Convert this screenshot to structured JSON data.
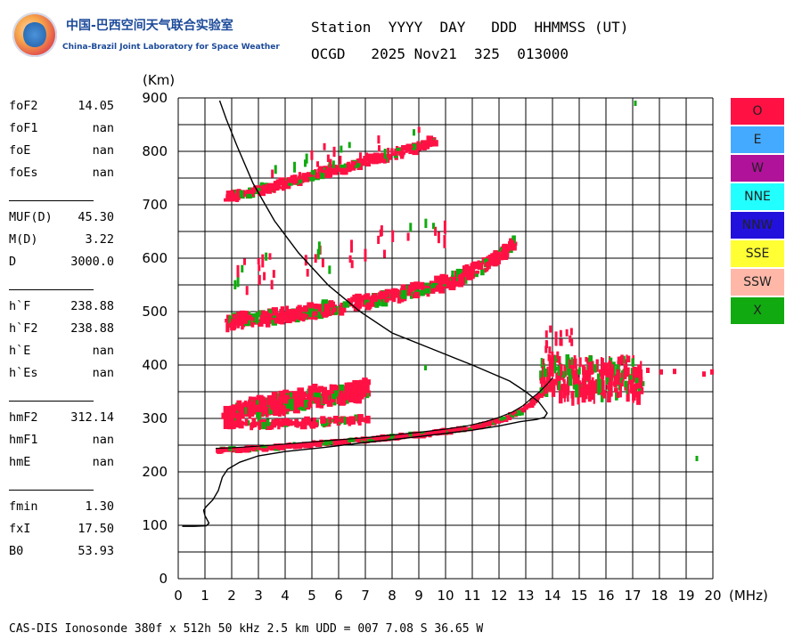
{
  "logo": {
    "cn": "中国-巴西空间天气联合实验室",
    "en": "China-Brazil Joint Laboratory for Space Weather"
  },
  "header": {
    "line1": "Station  YYYY  DAY   DDD  HHMMSS (UT)",
    "line2": "OCGD   2025 Nov21  325  013000"
  },
  "params": [
    {
      "label": "foF2",
      "value": "14.05"
    },
    {
      "label": "foF1",
      "value": "nan"
    },
    {
      "label": "foE",
      "value": "nan"
    },
    {
      "label": "foEs",
      "value": "nan"
    },
    {
      "divider": true
    },
    {
      "label": "MUF(D)",
      "value": "45.30"
    },
    {
      "label": "M(D)",
      "value": "3.22"
    },
    {
      "label": "D",
      "value": "3000.0"
    },
    {
      "divider": true
    },
    {
      "label": "h`F",
      "value": "238.88"
    },
    {
      "label": "h`F2",
      "value": "238.88"
    },
    {
      "label": "h`E",
      "value": "nan"
    },
    {
      "label": "h`Es",
      "value": "nan"
    },
    {
      "divider": true
    },
    {
      "label": "hmF2",
      "value": "312.14"
    },
    {
      "label": "hmF1",
      "value": "nan"
    },
    {
      "label": "hmE",
      "value": "nan"
    },
    {
      "divider": true
    },
    {
      "label": "fmin",
      "value": "1.30"
    },
    {
      "label": "fxI",
      "value": "17.50"
    },
    {
      "label": "B0",
      "value": "53.93"
    }
  ],
  "legend": [
    {
      "label": "O",
      "color": "#ff1144"
    },
    {
      "label": "E",
      "color": "#44aaff"
    },
    {
      "label": "W",
      "color": "#b0129a"
    },
    {
      "label": "NNE",
      "color": "#22ffff"
    },
    {
      "label": "NNW",
      "color": "#2211dd"
    },
    {
      "label": "SSE",
      "color": "#ffff33"
    },
    {
      "label": "SSW",
      "color": "#ffb8a8"
    },
    {
      "label": "X",
      "color": "#11aa11"
    }
  ],
  "footer": "CAS-DIS Ionosonde 380f x 512h 50 kHz 2.5 km UDD = 007 7.08 S 36.65 W",
  "chart_data": {
    "type": "scatter",
    "xlabel": "(MHz)",
    "ylabel": "(Km)",
    "xlim": [
      0,
      20
    ],
    "ylim": [
      0,
      900
    ],
    "x_ticks": [
      0,
      1,
      2,
      3,
      4,
      5,
      6,
      7,
      8,
      9,
      10,
      11,
      12,
      13,
      14,
      15,
      16,
      17,
      18,
      19,
      20
    ],
    "y_ticks": [
      0,
      100,
      200,
      300,
      400,
      500,
      600,
      700,
      800,
      900
    ],
    "grid": true,
    "profile_curve": {
      "name": "",
      "points": [
        [
          0.15,
          98
        ],
        [
          0.6,
          98
        ],
        [
          1.05,
          99
        ],
        [
          1.15,
          104
        ],
        [
          1.0,
          118
        ],
        [
          0.95,
          128
        ],
        [
          1.05,
          135
        ],
        [
          1.3,
          148
        ],
        [
          1.5,
          165
        ],
        [
          1.65,
          190
        ],
        [
          1.85,
          205
        ],
        [
          2.3,
          218
        ],
        [
          3.0,
          230
        ],
        [
          4.0,
          238
        ],
        [
          5.5,
          246
        ],
        [
          7.0,
          255
        ],
        [
          8.5,
          263
        ],
        [
          10.0,
          272
        ],
        [
          11.0,
          278
        ],
        [
          12.0,
          286
        ],
        [
          12.8,
          294
        ],
        [
          13.4,
          298
        ],
        [
          13.7,
          302
        ],
        [
          13.8,
          310
        ],
        [
          13.5,
          330
        ],
        [
          13.0,
          350
        ],
        [
          12.4,
          370
        ],
        [
          11.0,
          400
        ],
        [
          9.5,
          430
        ],
        [
          8.0,
          460
        ],
        [
          6.8,
          500
        ],
        [
          5.6,
          550
        ],
        [
          4.5,
          610
        ],
        [
          3.6,
          670
        ],
        [
          2.8,
          740
        ],
        [
          2.2,
          810
        ],
        [
          1.8,
          860
        ],
        [
          1.55,
          895
        ]
      ]
    },
    "o_trace_f1": [
      [
        1.4,
        240
      ],
      [
        2.0,
        241
      ],
      [
        3.0,
        244
      ],
      [
        4.0,
        248
      ],
      [
        5.0,
        252
      ],
      [
        6.0,
        256
      ],
      [
        7.0,
        260
      ],
      [
        8.0,
        265
      ],
      [
        9.0,
        270
      ],
      [
        10.0,
        276
      ],
      [
        10.8,
        282
      ],
      [
        11.5,
        290
      ],
      [
        12.0,
        298
      ],
      [
        12.5,
        308
      ],
      [
        12.9,
        320
      ],
      [
        13.2,
        333
      ],
      [
        13.5,
        345
      ],
      [
        13.8,
        360
      ],
      [
        14.0,
        372
      ]
    ],
    "o_trace_f2": [
      [
        1.6,
        300
      ],
      [
        2.0,
        305
      ],
      [
        2.5,
        315
      ],
      [
        3.0,
        322
      ],
      [
        3.5,
        326
      ],
      [
        4.0,
        330
      ],
      [
        4.5,
        335
      ],
      [
        5.0,
        340
      ],
      [
        5.5,
        343
      ],
      [
        6.0,
        346
      ],
      [
        6.5,
        350
      ],
      [
        7.0,
        356
      ]
    ],
    "o_trace_f2b": [
      [
        1.8,
        290
      ],
      [
        3.0,
        290
      ],
      [
        4.0,
        291
      ],
      [
        5.0,
        292
      ],
      [
        6.0,
        295
      ],
      [
        7.0,
        298
      ]
    ],
    "o_trace_2hop": [
      [
        1.7,
        480
      ],
      [
        2.5,
        484
      ],
      [
        3.5,
        490
      ],
      [
        4.5,
        497
      ],
      [
        5.5,
        505
      ],
      [
        6.5,
        515
      ],
      [
        7.5,
        525
      ],
      [
        8.5,
        535
      ],
      [
        9.5,
        548
      ],
      [
        10.5,
        565
      ],
      [
        11.5,
        590
      ],
      [
        12.5,
        625
      ]
    ],
    "o_trace_3hop": [
      [
        1.7,
        715
      ],
      [
        2.5,
        722
      ],
      [
        3.5,
        735
      ],
      [
        4.5,
        748
      ],
      [
        5.5,
        762
      ],
      [
        6.5,
        775
      ],
      [
        7.5,
        788
      ],
      [
        8.5,
        802
      ],
      [
        9.5,
        818
      ]
    ],
    "o_spread_cluster": {
      "x_range": [
        13.5,
        17.3
      ],
      "y_range": [
        350,
        420
      ]
    },
    "o_spread_tail": [
      [
        17.5,
        395
      ],
      [
        18.0,
        392
      ],
      [
        18.5,
        393
      ],
      [
        19.6,
        388
      ],
      [
        19.9,
        392
      ]
    ]
  }
}
